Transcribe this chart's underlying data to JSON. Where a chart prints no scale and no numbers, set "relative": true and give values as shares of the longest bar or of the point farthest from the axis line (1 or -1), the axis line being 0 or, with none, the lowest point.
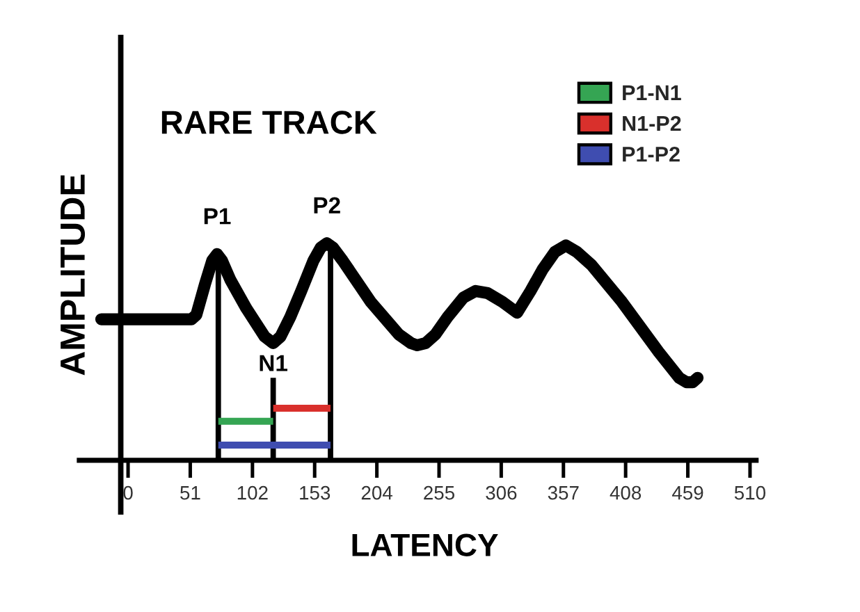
{
  "chart_data": {
    "type": "line",
    "title": "RARE TRACK",
    "xlabel": "LATENCY",
    "ylabel": "AMPLITUDE",
    "relative": true,
    "xlim": [
      -40,
      515
    ],
    "xticks": [
      0,
      51,
      102,
      153,
      204,
      255,
      306,
      357,
      408,
      459,
      510
    ],
    "series": [
      {
        "color": "#000000",
        "x": [
          74,
          74
        ],
        "values": [
          0,
          0.94
        ]
      },
      {
        "color": "#000000",
        "x": [
          119,
          119
        ],
        "values": [
          0,
          0.38
        ]
      },
      {
        "color": "#000000",
        "x": [
          166,
          166
        ],
        "values": [
          0,
          0.98
        ]
      },
      {
        "name": "P1-N1",
        "color": "#35a553",
        "x": [
          74,
          119
        ],
        "values": [
          0.18,
          0.18
        ]
      },
      {
        "name": "N1-P2",
        "color": "#d9302c",
        "x": [
          119,
          166
        ],
        "values": [
          0.24,
          0.24
        ]
      },
      {
        "name": "P1-P2",
        "color": "#3f4db0",
        "x": [
          74,
          166
        ],
        "values": [
          0.07,
          0.07
        ]
      },
      {
        "color": "#000000",
        "x": [
          -22,
          52,
          56,
          63,
          69,
          73,
          77,
          84,
          97,
          112,
          119,
          125,
          133,
          142,
          152,
          158,
          163,
          168,
          176,
          199,
          222,
          232,
          237,
          244,
          252,
          262,
          275,
          285,
          295,
          307,
          319,
          330,
          340,
          350,
          359,
          368,
          380,
          405,
          435,
          452,
          458,
          463,
          467
        ],
        "values": [
          0.65,
          0.65,
          0.67,
          0.81,
          0.92,
          0.95,
          0.92,
          0.83,
          0.7,
          0.57,
          0.54,
          0.57,
          0.66,
          0.78,
          0.92,
          0.98,
          1.0,
          0.98,
          0.92,
          0.73,
          0.58,
          0.54,
          0.53,
          0.54,
          0.58,
          0.66,
          0.75,
          0.78,
          0.77,
          0.73,
          0.68,
          0.78,
          0.88,
          0.96,
          0.99,
          0.96,
          0.9,
          0.73,
          0.5,
          0.38,
          0.36,
          0.36,
          0.38
        ]
      }
    ],
    "ref_lines": [
      {
        "axis": "x",
        "value": -6,
        "color": "#000000"
      }
    ],
    "annotations": [
      {
        "text": "P1",
        "x": 73,
        "y": 0.95
      },
      {
        "text": "N1",
        "x": 119,
        "y": 0.38
      },
      {
        "text": "P2",
        "x": 163,
        "y": 1.0
      }
    ],
    "legend": "top right",
    "grid": false
  }
}
